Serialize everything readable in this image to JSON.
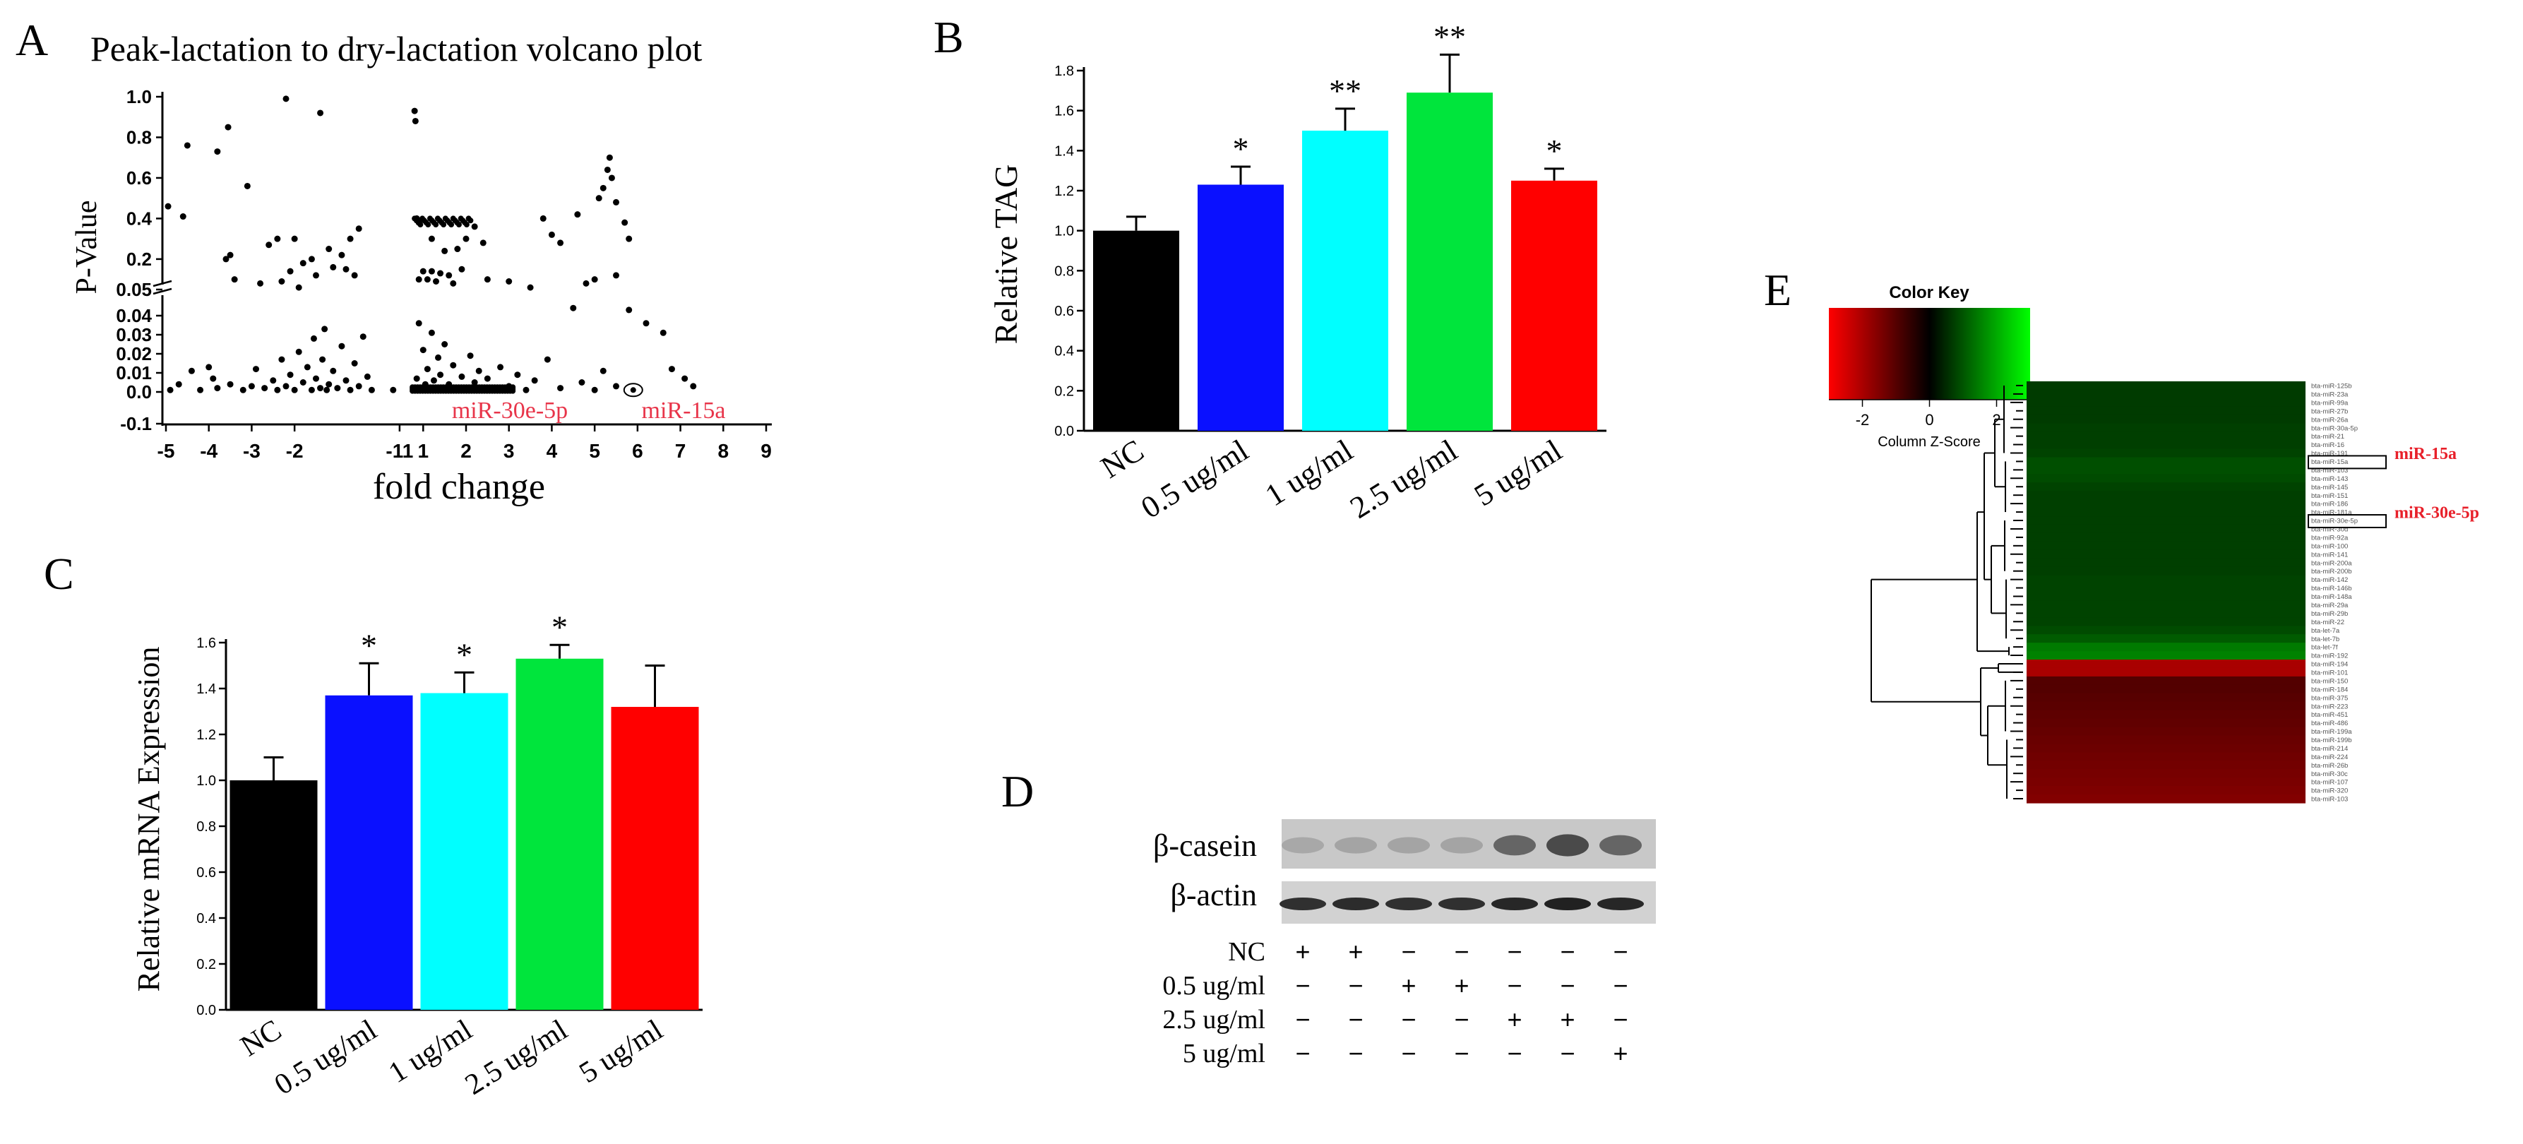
{
  "panels": {
    "A": {
      "letter": "A"
    },
    "B": {
      "letter": "B"
    },
    "C": {
      "letter": "C"
    },
    "D": {
      "letter": "D"
    },
    "E": {
      "letter": "E"
    }
  },
  "chart_data": [
    {
      "id": "A",
      "type": "scatter",
      "title": "Peak-lactation to dry-lactation volcano plot",
      "xlabel": "fold change",
      "ylabel": "P-Value",
      "x_ticks": [
        "-5",
        "-4",
        "-3",
        "-2",
        "-11",
        "1",
        "2",
        "3",
        "4",
        "5",
        "6",
        "7",
        "8",
        "9"
      ],
      "y_ticks_upper": [
        "1.0",
        "0.8",
        "0.6",
        "0.4",
        "0.2",
        "0.05"
      ],
      "y_ticks_lower": [
        "0.04",
        "0.03",
        "0.02",
        "0.01",
        "0.0",
        "-0.1"
      ],
      "annotations": [
        "miR-30e-5p",
        "miR-15a"
      ],
      "annotation_color": "#e8354a",
      "points_upper": [
        [
          -4.95,
          0.46
        ],
        [
          -4.6,
          0.41
        ],
        [
          -4.5,
          0.76
        ],
        [
          -3.8,
          0.73
        ],
        [
          -3.55,
          0.85
        ],
        [
          -3.5,
          0.22
        ],
        [
          -3.1,
          0.56
        ],
        [
          -2.2,
          0.99
        ],
        [
          -2.6,
          0.27
        ],
        [
          -2.4,
          0.3
        ],
        [
          -2.0,
          0.3
        ],
        [
          -1.6,
          0.2
        ],
        [
          -1.4,
          0.92
        ],
        [
          -1.2,
          0.25
        ],
        [
          -0.9,
          0.22
        ],
        [
          -0.7,
          0.3
        ],
        [
          -0.5,
          0.35
        ],
        [
          0.8,
          0.93
        ],
        [
          0.82,
          0.88
        ],
        [
          0.85,
          0.4
        ],
        [
          0.9,
          0.38
        ],
        [
          1.2,
          0.3
        ],
        [
          1.5,
          0.24
        ],
        [
          1.8,
          0.25
        ],
        [
          2.0,
          0.3
        ],
        [
          2.2,
          0.36
        ],
        [
          2.4,
          0.28
        ],
        [
          3.8,
          0.4
        ],
        [
          4.0,
          0.32
        ],
        [
          4.2,
          0.28
        ],
        [
          4.6,
          0.42
        ],
        [
          5.1,
          0.5
        ],
        [
          5.2,
          0.55
        ],
        [
          5.3,
          0.64
        ],
        [
          5.35,
          0.7
        ],
        [
          5.4,
          0.6
        ],
        [
          5.5,
          0.48
        ],
        [
          5.7,
          0.38
        ],
        [
          5.8,
          0.3
        ],
        [
          -3.6,
          0.2
        ],
        [
          -3.4,
          0.1
        ],
        [
          -2.8,
          0.08
        ],
        [
          -2.1,
          0.14
        ],
        [
          -1.8,
          0.18
        ],
        [
          -1.5,
          0.12
        ],
        [
          -1.1,
          0.16
        ],
        [
          -0.8,
          0.15
        ],
        [
          -0.6,
          0.12
        ],
        [
          0.9,
          0.1
        ],
        [
          1.1,
          0.1
        ],
        [
          1.3,
          0.09
        ],
        [
          1.6,
          0.12
        ],
        [
          1.9,
          0.15
        ],
        [
          2.5,
          0.1
        ],
        [
          3.0,
          0.09
        ],
        [
          3.5,
          0.06
        ],
        [
          4.8,
          0.08
        ],
        [
          5.0,
          0.1
        ],
        [
          5.5,
          0.12
        ],
        [
          1.0,
          0.14
        ],
        [
          1.2,
          0.14
        ],
        [
          1.4,
          0.13
        ],
        [
          1.7,
          0.08
        ],
        [
          -2.3,
          0.09
        ],
        [
          -1.9,
          0.06
        ]
      ],
      "points_lower": [
        [
          -4.9,
          0.001
        ],
        [
          -4.7,
          0.004
        ],
        [
          -4.2,
          0.001
        ],
        [
          -4.0,
          0.013
        ],
        [
          -3.8,
          0.002
        ],
        [
          -3.5,
          0.004
        ],
        [
          -3.2,
          0.001
        ],
        [
          -3.0,
          0.003
        ],
        [
          -2.9,
          0.012
        ],
        [
          -2.7,
          0.002
        ],
        [
          -2.5,
          0.006
        ],
        [
          -2.4,
          0.001
        ],
        [
          -2.3,
          0.017
        ],
        [
          -2.2,
          0.003
        ],
        [
          -2.1,
          0.009
        ],
        [
          -2.0,
          0.001
        ],
        [
          -1.9,
          0.021
        ],
        [
          -1.8,
          0.005
        ],
        [
          -1.7,
          0.013
        ],
        [
          -1.6,
          0.001
        ],
        [
          -1.55,
          0.028
        ],
        [
          -1.5,
          0.007
        ],
        [
          -1.4,
          0.002
        ],
        [
          -1.35,
          0.017
        ],
        [
          -1.3,
          0.033
        ],
        [
          -1.2,
          0.004
        ],
        [
          -1.1,
          0.011
        ],
        [
          -1.0,
          0.002
        ],
        [
          -0.9,
          0.024
        ],
        [
          -0.8,
          0.006
        ],
        [
          -0.7,
          0.001
        ],
        [
          -0.6,
          0.015
        ],
        [
          -0.5,
          0.003
        ],
        [
          -0.4,
          0.029
        ],
        [
          -0.3,
          0.008
        ],
        [
          -0.2,
          0.001
        ],
        [
          0.8,
          0.001
        ],
        [
          0.85,
          0.007
        ],
        [
          0.9,
          0.036
        ],
        [
          0.95,
          0.002
        ],
        [
          1.0,
          0.022
        ],
        [
          1.05,
          0.004
        ],
        [
          1.1,
          0.012
        ],
        [
          1.15,
          0.001
        ],
        [
          1.2,
          0.031
        ],
        [
          1.25,
          0.006
        ],
        [
          1.3,
          0.002
        ],
        [
          1.35,
          0.018
        ],
        [
          1.4,
          0.009
        ],
        [
          1.45,
          0.001
        ],
        [
          1.5,
          0.025
        ],
        [
          1.6,
          0.004
        ],
        [
          1.7,
          0.014
        ],
        [
          1.8,
          0.002
        ],
        [
          1.9,
          0.008
        ],
        [
          2.0,
          0.001
        ],
        [
          2.1,
          0.019
        ],
        [
          2.2,
          0.005
        ],
        [
          2.3,
          0.011
        ],
        [
          2.4,
          0.002
        ],
        [
          2.5,
          0.007
        ],
        [
          2.6,
          0.001
        ],
        [
          2.8,
          0.013
        ],
        [
          3.0,
          0.003
        ],
        [
          3.2,
          0.009
        ],
        [
          3.4,
          0.001
        ],
        [
          3.6,
          0.006
        ],
        [
          3.9,
          0.017
        ],
        [
          4.2,
          0.002
        ],
        [
          4.5,
          0.044
        ],
        [
          4.7,
          0.005
        ],
        [
          5.0,
          0.001
        ],
        [
          5.2,
          0.011
        ],
        [
          5.5,
          0.003
        ],
        [
          5.8,
          0.043
        ],
        [
          6.2,
          0.036
        ],
        [
          6.6,
          0.031
        ],
        [
          6.8,
          0.012
        ],
        [
          7.1,
          0.007
        ],
        [
          7.3,
          0.003
        ],
        [
          -4.4,
          0.011
        ],
        [
          -3.9,
          0.007
        ],
        [
          -1.25,
          0.001
        ],
        [
          0.3,
          0.001
        ]
      ],
      "highlight_point": [
        5.9,
        0.001
      ]
    },
    {
      "id": "B",
      "type": "bar",
      "ylabel": "Relative TAG",
      "ylim": [
        0.0,
        1.8
      ],
      "yticks": [
        "0.0",
        "0.2",
        "0.4",
        "0.6",
        "0.8",
        "1.0",
        "1.2",
        "1.4",
        "1.6",
        "1.8"
      ],
      "categories": [
        "NC",
        "0.5 ug/ml",
        "1  ug/ml",
        "2.5 ug/ml",
        "5 ug/ml"
      ],
      "values": [
        1.0,
        1.23,
        1.5,
        1.69,
        1.25
      ],
      "errors": [
        0.07,
        0.09,
        0.11,
        0.19,
        0.06
      ],
      "significance": [
        "",
        "*",
        "**",
        "**",
        "*"
      ],
      "colors": [
        "#000000",
        "#0a10ff",
        "#00ffff",
        "#00e53c",
        "#ff0000"
      ]
    },
    {
      "id": "C",
      "type": "bar",
      "ylabel": "Relative mRNA Expression",
      "ylim": [
        0.0,
        1.6
      ],
      "yticks": [
        "0.0",
        "0.2",
        "0.4",
        "0.6",
        "0.8",
        "1.0",
        "1.2",
        "1.4",
        "1.6"
      ],
      "categories": [
        "NC",
        "0.5 ug/ml",
        "1 ug/ml",
        "2.5 ug/ml",
        "5 ug/ml"
      ],
      "values": [
        1.0,
        1.37,
        1.38,
        1.53,
        1.32
      ],
      "errors": [
        0.1,
        0.14,
        0.09,
        0.06,
        0.18
      ],
      "significance": [
        "",
        "*",
        "*",
        "*",
        ""
      ],
      "colors": [
        "#000000",
        "#0a10ff",
        "#00ffff",
        "#00e53c",
        "#ff0000"
      ]
    },
    {
      "id": "D",
      "type": "table",
      "blot_labels": [
        "β-casein",
        "β-actin"
      ],
      "row_labels": [
        "NC",
        "0.5 ug/ml",
        "2.5 ug/ml",
        "5 ug/ml"
      ],
      "rows": [
        [
          "+",
          "+",
          "−",
          "−",
          "−",
          "−",
          "−"
        ],
        [
          "−",
          "−",
          "+",
          "+",
          "−",
          "−",
          "−"
        ],
        [
          "−",
          "−",
          "−",
          "−",
          "+",
          "+",
          "−"
        ],
        [
          "−",
          "−",
          "−",
          "−",
          "−",
          "−",
          "+"
        ]
      ],
      "casein_intensity": [
        0.18,
        0.2,
        0.2,
        0.2,
        0.55,
        0.7,
        0.55
      ],
      "actin_intensity": [
        0.8,
        0.82,
        0.8,
        0.8,
        0.85,
        0.88,
        0.85
      ]
    },
    {
      "id": "E",
      "type": "heatmap",
      "color_key_title": "Color Key",
      "color_key_ticks": [
        "-2",
        "0",
        "2"
      ],
      "color_key_label": "Column Z-Score",
      "highlight_labels": [
        "miR-15a",
        "miR-30e-5p"
      ],
      "highlight_color": "#e8202a",
      "row_labels": [
        "bta-miR-125b",
        "bta-miR-23a",
        "bta-miR-99a",
        "bta-miR-27b",
        "bta-miR-26a",
        "bta-miR-30a-5p",
        "bta-miR-21",
        "bta-miR-16",
        "bta-miR-191",
        "bta-miR-15a",
        "bta-miR-103",
        "bta-miR-143",
        "bta-miR-145",
        "bta-miR-151",
        "bta-miR-186",
        "bta-miR-181a",
        "bta-miR-30e-5p",
        "bta-miR-30d",
        "bta-miR-92a",
        "bta-miR-100",
        "bta-miR-141",
        "bta-miR-200a",
        "bta-miR-200b",
        "bta-miR-142",
        "bta-miR-146b",
        "bta-miR-148a",
        "bta-miR-29a",
        "bta-miR-29b",
        "bta-miR-22",
        "bta-let-7a",
        "bta-let-7b",
        "bta-let-7f",
        "bta-miR-192",
        "bta-miR-194",
        "bta-miR-101",
        "bta-miR-150",
        "bta-miR-184",
        "bta-miR-375",
        "bta-miR-223",
        "bta-miR-451",
        "bta-miR-486",
        "bta-miR-199a",
        "bta-miR-199b",
        "bta-miR-214",
        "bta-miR-224",
        "bta-miR-26b",
        "bta-miR-30c",
        "bta-miR-107",
        "bta-miR-320",
        "bta-miR-103"
      ],
      "row_values": [
        0.5,
        0.5,
        0.5,
        0.5,
        0.5,
        0.55,
        0.55,
        0.55,
        0.6,
        0.75,
        0.75,
        0.7,
        0.6,
        0.55,
        0.55,
        0.55,
        0.55,
        0.55,
        0.55,
        0.55,
        0.55,
        0.55,
        0.55,
        0.6,
        0.6,
        0.6,
        0.6,
        0.6,
        0.6,
        0.7,
        0.9,
        1.3,
        1.4,
        -1.8,
        -1.8,
        -0.6,
        -0.6,
        -0.65,
        -0.7,
        -0.75,
        -0.8,
        -0.85,
        -0.9,
        -0.95,
        -1.0,
        -1.05,
        -1.1,
        -1.15,
        -1.2,
        -1.25
      ]
    }
  ]
}
